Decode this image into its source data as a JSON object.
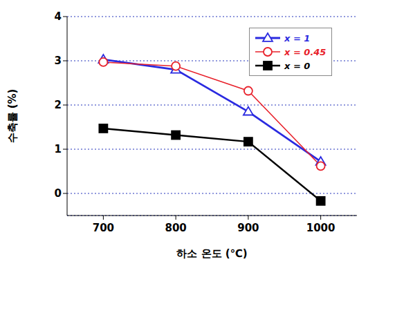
{
  "chart_data": {
    "type": "line",
    "x_label": "하소 온도 (℃)",
    "y_label": "수축률 (%)",
    "x": [
      700,
      800,
      900,
      1000
    ],
    "xlim": [
      650,
      1050
    ],
    "xticks": [
      700,
      800,
      900,
      1000
    ],
    "ylim": [
      -0.5,
      4
    ],
    "yticks": [
      0,
      1,
      2,
      3,
      4
    ],
    "grid": "y",
    "legend": "upper right",
    "series": [
      {
        "name": "x = 1",
        "color": "#2a2ae0",
        "marker": "triangle",
        "values": [
          3.03,
          2.8,
          1.85,
          0.72
        ]
      },
      {
        "name": "x = 0.45",
        "color": "#e8202a",
        "marker": "circle",
        "values": [
          2.97,
          2.88,
          2.32,
          0.62
        ]
      },
      {
        "name": "x = 0",
        "color": "#000000",
        "marker": "square",
        "values": [
          1.47,
          1.32,
          1.17,
          -0.17
        ]
      }
    ]
  }
}
